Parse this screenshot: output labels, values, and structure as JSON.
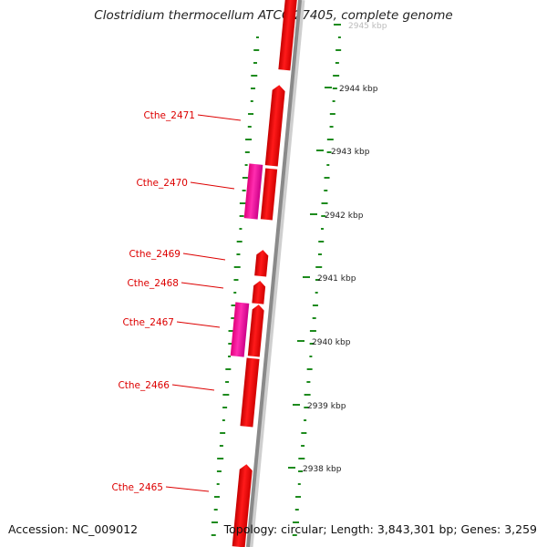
{
  "title": "Clostridium thermocellum ATCC 27405, complete genome",
  "footer": {
    "accession": "Accession: NC_009012",
    "topology": "Topology: circular; Length: 3,843,301 bp; Genes: 3,259"
  },
  "scale": {
    "unit": "kbp",
    "ticks": [
      "2945 kbp",
      "2944 kbp",
      "2943 kbp",
      "2942 kbp",
      "2941 kbp",
      "2940 kbp",
      "2939 kbp",
      "2938 kbp"
    ]
  },
  "genes": [
    "Cthe_2471",
    "Cthe_2470",
    "Cthe_2469",
    "Cthe_2468",
    "Cthe_2467",
    "Cthe_2466",
    "Cthe_2465"
  ],
  "colors": {
    "gene": "#ff0000",
    "gene_alt": "#ff1aa0",
    "gc_track": "#1e8b1e",
    "backbone": "#8a8a8a",
    "label": "#dd0000"
  }
}
